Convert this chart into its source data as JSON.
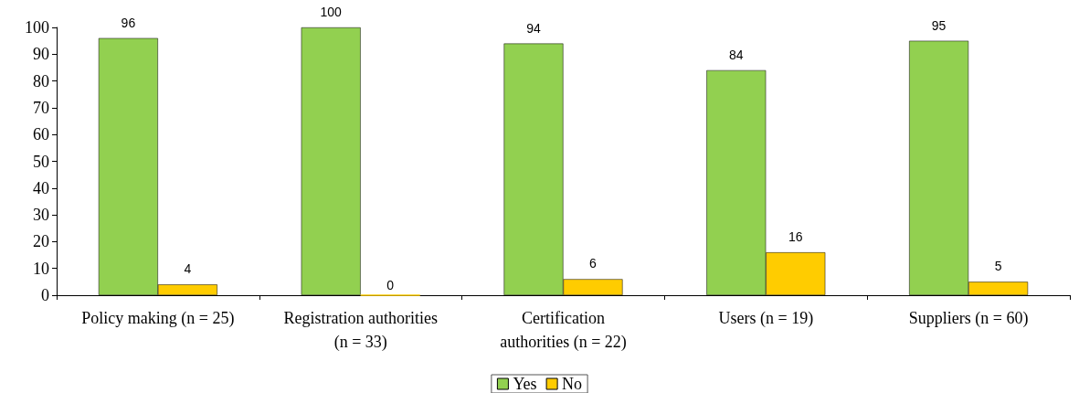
{
  "chart_data": {
    "type": "bar",
    "categories": [
      "Policy making (n = 25)",
      "Registration authorities\n(n = 33)",
      "Certification\nauthorities (n = 22)",
      "Users (n = 19)",
      "Suppliers (n = 60)"
    ],
    "series": [
      {
        "name": "Yes",
        "color": "#92d050",
        "values": [
          96,
          100,
          94,
          84,
          95
        ]
      },
      {
        "name": "No",
        "color": "#ffcc00",
        "values": [
          4,
          0,
          6,
          16,
          5
        ]
      }
    ],
    "ylim": [
      0,
      100
    ],
    "yticks": [
      0,
      10,
      20,
      30,
      40,
      50,
      60,
      70,
      80,
      90,
      100
    ],
    "grid": false,
    "legend": "bottom",
    "data_labels": true
  }
}
